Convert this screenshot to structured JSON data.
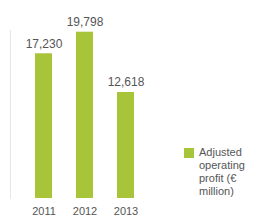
{
  "chart_data": {
    "type": "bar",
    "categories": [
      "2011",
      "2012",
      "2013"
    ],
    "series": [
      {
        "name": "Adjusted operating profit (€ million)",
        "color": "#a8c53a",
        "values": [
          17230,
          19798,
          12618
        ],
        "value_labels": [
          "17,230",
          "19,798",
          "12,618"
        ]
      }
    ],
    "ylim": [
      0,
      20000
    ],
    "data_labels": true,
    "tick_labels": "x",
    "legend": "right"
  }
}
